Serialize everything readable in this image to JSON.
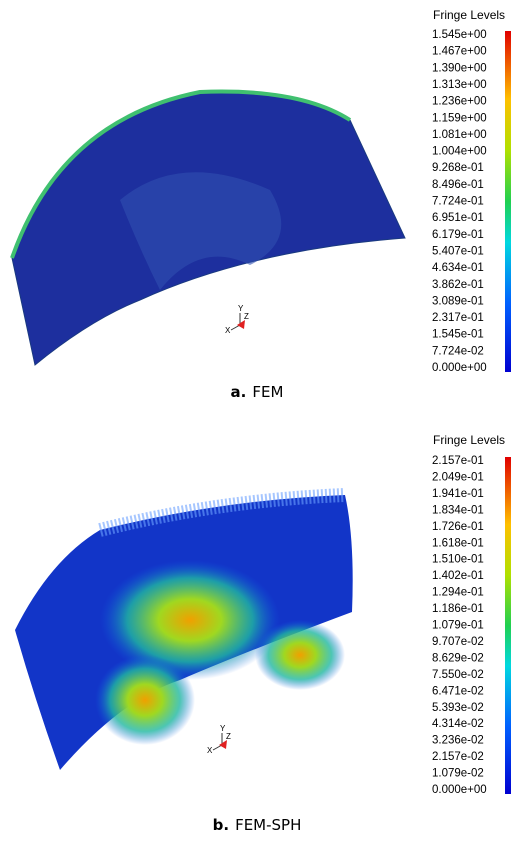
{
  "panels": [
    {
      "legend_title": "Fringe Levels",
      "levels": [
        "1.545e+00",
        "1.467e+00",
        "1.390e+00",
        "1.313e+00",
        "1.236e+00",
        "1.159e+00",
        "1.081e+00",
        "1.004e+00",
        "9.268e-01",
        "8.496e-01",
        "7.724e-01",
        "6.951e-01",
        "6.179e-01",
        "5.407e-01",
        "4.634e-01",
        "3.862e-01",
        "3.089e-01",
        "2.317e-01",
        "1.545e-01",
        "7.724e-02",
        "0.000e+00"
      ],
      "axis_labels": [
        "Y",
        "Z",
        "X"
      ],
      "caption_letter": "a.",
      "caption_text": "FEM"
    },
    {
      "legend_title": "Fringe Levels",
      "levels": [
        "2.157e-01",
        "2.049e-01",
        "1.941e-01",
        "1.834e-01",
        "1.726e-01",
        "1.618e-01",
        "1.510e-01",
        "1.402e-01",
        "1.294e-01",
        "1.186e-01",
        "1.079e-01",
        "9.707e-02",
        "8.629e-02",
        "7.550e-02",
        "6.471e-02",
        "5.393e-02",
        "4.314e-02",
        "3.236e-02",
        "2.157e-02",
        "1.079e-02",
        "0.000e+00"
      ],
      "axis_labels": [
        "Y",
        "Z",
        "X"
      ],
      "caption_letter": "b.",
      "caption_text": "FEM-SPH"
    }
  ]
}
